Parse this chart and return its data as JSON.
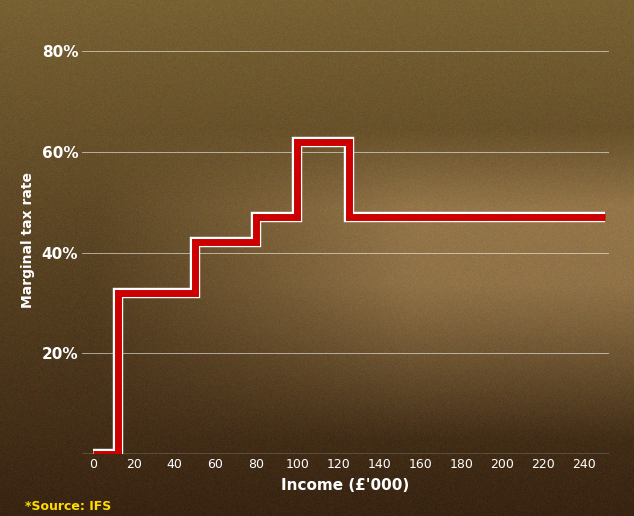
{
  "ylabel": "Marginal tax rate",
  "xlabel": "Income (£'000)",
  "source": "*Source: IFS",
  "line_color": "#cc0000",
  "line_width": 5.0,
  "grid_color": "#ffffff",
  "text_color": "#ffffff",
  "source_color": "#ffdd00",
  "yticks": [
    0,
    20,
    40,
    60,
    80
  ],
  "ytick_labels": [
    "",
    "20%",
    "40%",
    "60%",
    "80%"
  ],
  "xticks": [
    0,
    20,
    40,
    60,
    80,
    100,
    120,
    140,
    160,
    180,
    200,
    220,
    240
  ],
  "xlim": [
    -5,
    252
  ],
  "ylim": [
    0,
    85
  ],
  "step_x": [
    0,
    12.5,
    12.5,
    50,
    50,
    80,
    80,
    100,
    100,
    125.15,
    125.15,
    250
  ],
  "step_y": [
    0,
    0,
    32,
    32,
    42,
    42,
    47,
    47,
    62,
    62,
    47,
    47
  ],
  "bg_top_color": "#7a6545",
  "bg_bottom_color": "#3a2510",
  "bg_mid_color": "#b8956a"
}
